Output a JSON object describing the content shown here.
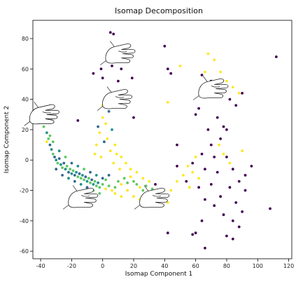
{
  "chart_data": {
    "type": "scatter",
    "title": "Isomap Decomposition",
    "xlabel": "Isomap Component 1",
    "ylabel": "Isomap Component 2",
    "xlim": [
      -45,
      122
    ],
    "ylim": [
      -65,
      92
    ],
    "xticks": [
      -40,
      -20,
      0,
      20,
      40,
      60,
      80,
      100,
      120
    ],
    "yticks": [
      -60,
      -40,
      -20,
      0,
      20,
      40,
      60,
      80
    ],
    "grid": false,
    "legend": "none",
    "colors": {
      "purple": "#440154",
      "blue": "#31688e",
      "teal": "#21908d",
      "green": "#5dc962",
      "yellow": "#fde725"
    },
    "hand_images": [
      {
        "x": 12,
        "y": 70
      },
      {
        "x": 10,
        "y": 40
      },
      {
        "x": -37,
        "y": 30
      },
      {
        "x": 72,
        "y": 47
      },
      {
        "x": -12,
        "y": -25
      },
      {
        "x": 34,
        "y": -25
      }
    ],
    "points": [
      {
        "x": -38,
        "y": 22,
        "c": "green"
      },
      {
        "x": -37,
        "y": 25,
        "c": "green"
      },
      {
        "x": -36,
        "y": 18,
        "c": "teal"
      },
      {
        "x": -35,
        "y": 14,
        "c": "green"
      },
      {
        "x": -34,
        "y": 10,
        "c": "blue"
      },
      {
        "x": -33,
        "y": 7,
        "c": "teal"
      },
      {
        "x": -32,
        "y": 4,
        "c": "green"
      },
      {
        "x": -31,
        "y": 2,
        "c": "blue"
      },
      {
        "x": -30,
        "y": 0,
        "c": "teal"
      },
      {
        "x": -29,
        "y": -2,
        "c": "green"
      },
      {
        "x": -28,
        "y": 1,
        "c": "blue"
      },
      {
        "x": -27,
        "y": -3,
        "c": "teal"
      },
      {
        "x": -26,
        "y": -5,
        "c": "green"
      },
      {
        "x": -25,
        "y": -2,
        "c": "blue"
      },
      {
        "x": -24,
        "y": -6,
        "c": "teal"
      },
      {
        "x": -23,
        "y": -4,
        "c": "green"
      },
      {
        "x": -22,
        "y": -8,
        "c": "blue"
      },
      {
        "x": -21,
        "y": -6,
        "c": "green"
      },
      {
        "x": -20,
        "y": -9,
        "c": "teal"
      },
      {
        "x": -19,
        "y": -7,
        "c": "green"
      },
      {
        "x": -18,
        "y": -10,
        "c": "blue"
      },
      {
        "x": -17,
        "y": -8,
        "c": "teal"
      },
      {
        "x": -16,
        "y": -11,
        "c": "green"
      },
      {
        "x": -15,
        "y": -9,
        "c": "blue"
      },
      {
        "x": -14,
        "y": -12,
        "c": "green"
      },
      {
        "x": -13,
        "y": -10,
        "c": "teal"
      },
      {
        "x": -12,
        "y": -13,
        "c": "green"
      },
      {
        "x": -11,
        "y": -11,
        "c": "blue"
      },
      {
        "x": -10,
        "y": -14,
        "c": "teal"
      },
      {
        "x": -9,
        "y": -12,
        "c": "green"
      },
      {
        "x": -8,
        "y": -15,
        "c": "green"
      },
      {
        "x": -7,
        "y": -13,
        "c": "blue"
      },
      {
        "x": -6,
        "y": -16,
        "c": "teal"
      },
      {
        "x": -5,
        "y": -14,
        "c": "green"
      },
      {
        "x": -4,
        "y": -17,
        "c": "green"
      },
      {
        "x": -3,
        "y": -15,
        "c": "teal"
      },
      {
        "x": -2,
        "y": -18,
        "c": "green"
      },
      {
        "x": 0,
        "y": -16,
        "c": "green"
      },
      {
        "x": 2,
        "y": -19,
        "c": "yellow"
      },
      {
        "x": 4,
        "y": -17,
        "c": "green"
      },
      {
        "x": 6,
        "y": -20,
        "c": "yellow"
      },
      {
        "x": 8,
        "y": -18,
        "c": "green"
      },
      {
        "x": 10,
        "y": -14,
        "c": "green"
      },
      {
        "x": 12,
        "y": -16,
        "c": "yellow"
      },
      {
        "x": 14,
        "y": -12,
        "c": "green"
      },
      {
        "x": 16,
        "y": -15,
        "c": "green"
      },
      {
        "x": 18,
        "y": -11,
        "c": "yellow"
      },
      {
        "x": 20,
        "y": -14,
        "c": "green"
      },
      {
        "x": 22,
        "y": -16,
        "c": "green"
      },
      {
        "x": 24,
        "y": -18,
        "c": "yellow"
      },
      {
        "x": 26,
        "y": -20,
        "c": "green"
      },
      {
        "x": 28,
        "y": -17,
        "c": "green"
      },
      {
        "x": 30,
        "y": -21,
        "c": "yellow"
      },
      {
        "x": 32,
        "y": -19,
        "c": "green"
      },
      {
        "x": 34,
        "y": -22,
        "c": "yellow"
      },
      {
        "x": 36,
        "y": -24,
        "c": "green"
      },
      {
        "x": 38,
        "y": -26,
        "c": "yellow"
      },
      {
        "x": -30,
        "y": -6,
        "c": "blue"
      },
      {
        "x": -26,
        "y": -10,
        "c": "blue"
      },
      {
        "x": -22,
        "y": -12,
        "c": "teal"
      },
      {
        "x": -18,
        "y": -14,
        "c": "blue"
      },
      {
        "x": -14,
        "y": -16,
        "c": "teal"
      },
      {
        "x": -10,
        "y": -18,
        "c": "blue"
      },
      {
        "x": -6,
        "y": -20,
        "c": "green"
      },
      {
        "x": -2,
        "y": -22,
        "c": "green"
      },
      {
        "x": 2,
        "y": -13,
        "c": "green"
      },
      {
        "x": -34,
        "y": 16,
        "c": "green"
      },
      {
        "x": -36,
        "y": 12,
        "c": "yellow"
      },
      {
        "x": -32,
        "y": 12,
        "c": "green"
      },
      {
        "x": -28,
        "y": 6,
        "c": "teal"
      },
      {
        "x": -24,
        "y": 2,
        "c": "green"
      },
      {
        "x": -20,
        "y": -2,
        "c": "blue"
      },
      {
        "x": -16,
        "y": -4,
        "c": "teal"
      },
      {
        "x": -12,
        "y": -6,
        "c": "green"
      },
      {
        "x": -8,
        "y": -8,
        "c": "blue"
      },
      {
        "x": -4,
        "y": -10,
        "c": "teal"
      },
      {
        "x": 0,
        "y": -12,
        "c": "blue"
      },
      {
        "x": 4,
        "y": -10,
        "c": "blue"
      },
      {
        "x": -39,
        "y": 30,
        "c": "green"
      },
      {
        "x": -38,
        "y": 34,
        "c": "green"
      },
      {
        "x": -36,
        "y": 28,
        "c": "blue"
      },
      {
        "x": -33,
        "y": 26,
        "c": "green"
      },
      {
        "x": -40,
        "y": 26,
        "c": "green"
      },
      {
        "x": 0,
        "y": 28,
        "c": "yellow"
      },
      {
        "x": 2,
        "y": 24,
        "c": "yellow"
      },
      {
        "x": -2,
        "y": 18,
        "c": "yellow"
      },
      {
        "x": 3,
        "y": 14,
        "c": "yellow"
      },
      {
        "x": -4,
        "y": 10,
        "c": "yellow"
      },
      {
        "x": 5,
        "y": 6,
        "c": "yellow"
      },
      {
        "x": -1,
        "y": 2,
        "c": "yellow"
      },
      {
        "x": 7,
        "y": -2,
        "c": "yellow"
      },
      {
        "x": 9,
        "y": 4,
        "c": "yellow"
      },
      {
        "x": 11,
        "y": -6,
        "c": "yellow"
      },
      {
        "x": 4,
        "y": 32,
        "c": "blue"
      },
      {
        "x": 0,
        "y": 36,
        "c": "yellow"
      },
      {
        "x": -3,
        "y": 22,
        "c": "blue"
      },
      {
        "x": 6,
        "y": 20,
        "c": "teal"
      },
      {
        "x": 1,
        "y": 12,
        "c": "blue"
      },
      {
        "x": 8,
        "y": 10,
        "c": "yellow"
      },
      {
        "x": -5,
        "y": 4,
        "c": "yellow"
      },
      {
        "x": 12,
        "y": 2,
        "c": "yellow"
      },
      {
        "x": 15,
        "y": -2,
        "c": "yellow"
      },
      {
        "x": 18,
        "y": -6,
        "c": "yellow"
      },
      {
        "x": 22,
        "y": -8,
        "c": "yellow"
      },
      {
        "x": 26,
        "y": -12,
        "c": "yellow"
      },
      {
        "x": 30,
        "y": -14,
        "c": "yellow"
      },
      {
        "x": 8,
        "y": -22,
        "c": "yellow"
      },
      {
        "x": 12,
        "y": -24,
        "c": "yellow"
      },
      {
        "x": 16,
        "y": -20,
        "c": "yellow"
      },
      {
        "x": 20,
        "y": -24,
        "c": "yellow"
      },
      {
        "x": 24,
        "y": -26,
        "c": "yellow"
      },
      {
        "x": 28,
        "y": -28,
        "c": "yellow"
      },
      {
        "x": 42,
        "y": -28,
        "c": "yellow"
      },
      {
        "x": 44,
        "y": -20,
        "c": "yellow"
      },
      {
        "x": 48,
        "y": -14,
        "c": "yellow"
      },
      {
        "x": 52,
        "y": -10,
        "c": "yellow"
      },
      {
        "x": 55,
        "y": -4,
        "c": "yellow"
      },
      {
        "x": 58,
        "y": -8,
        "c": "yellow"
      },
      {
        "x": 60,
        "y": 2,
        "c": "yellow"
      },
      {
        "x": 62,
        "y": -12,
        "c": "yellow"
      },
      {
        "x": 56,
        "y": -18,
        "c": "yellow"
      },
      {
        "x": 66,
        "y": 58,
        "c": "yellow"
      },
      {
        "x": 68,
        "y": 70,
        "c": "yellow"
      },
      {
        "x": 72,
        "y": 66,
        "c": "yellow"
      },
      {
        "x": 76,
        "y": 58,
        "c": "yellow"
      },
      {
        "x": 80,
        "y": 52,
        "c": "yellow"
      },
      {
        "x": 84,
        "y": 48,
        "c": "yellow"
      },
      {
        "x": 88,
        "y": 44,
        "c": "yellow"
      },
      {
        "x": 63,
        "y": 46,
        "c": "yellow"
      },
      {
        "x": 78,
        "y": 4,
        "c": "yellow"
      },
      {
        "x": 82,
        "y": -2,
        "c": "yellow"
      },
      {
        "x": 75,
        "y": 10,
        "c": "yellow"
      },
      {
        "x": 50,
        "y": 62,
        "c": "yellow"
      },
      {
        "x": 42,
        "y": 38,
        "c": "yellow"
      },
      {
        "x": 90,
        "y": 6,
        "c": "yellow"
      },
      {
        "x": 5,
        "y": 84,
        "c": "purple"
      },
      {
        "x": 7,
        "y": 83,
        "c": "purple"
      },
      {
        "x": 9,
        "y": 72,
        "c": "purple"
      },
      {
        "x": 3,
        "y": 68,
        "c": "purple"
      },
      {
        "x": -1,
        "y": 60,
        "c": "purple"
      },
      {
        "x": 6,
        "y": 62,
        "c": "purple"
      },
      {
        "x": 12,
        "y": 60,
        "c": "purple"
      },
      {
        "x": -6,
        "y": 57,
        "c": "purple"
      },
      {
        "x": 0,
        "y": 54,
        "c": "purple"
      },
      {
        "x": 10,
        "y": 52,
        "c": "purple"
      },
      {
        "x": 19,
        "y": 54,
        "c": "purple"
      },
      {
        "x": 20,
        "y": 28,
        "c": "purple"
      },
      {
        "x": -16,
        "y": 26,
        "c": "purple"
      },
      {
        "x": 40,
        "y": 75,
        "c": "purple"
      },
      {
        "x": 42,
        "y": 60,
        "c": "purple"
      },
      {
        "x": 44,
        "y": 57,
        "c": "purple"
      },
      {
        "x": 64,
        "y": 56,
        "c": "purple"
      },
      {
        "x": 70,
        "y": 52,
        "c": "purple"
      },
      {
        "x": 62,
        "y": 34,
        "c": "purple"
      },
      {
        "x": 74,
        "y": 28,
        "c": "purple"
      },
      {
        "x": 78,
        "y": 22,
        "c": "purple"
      },
      {
        "x": 82,
        "y": 40,
        "c": "purple"
      },
      {
        "x": 86,
        "y": 36,
        "c": "purple"
      },
      {
        "x": 68,
        "y": 20,
        "c": "purple"
      },
      {
        "x": 48,
        "y": 10,
        "c": "purple"
      },
      {
        "x": 70,
        "y": 10,
        "c": "purple"
      },
      {
        "x": 64,
        "y": 4,
        "c": "purple"
      },
      {
        "x": 72,
        "y": 2,
        "c": "purple"
      },
      {
        "x": 58,
        "y": -2,
        "c": "purple"
      },
      {
        "x": 66,
        "y": -6,
        "c": "purple"
      },
      {
        "x": 74,
        "y": -8,
        "c": "purple"
      },
      {
        "x": 80,
        "y": 2,
        "c": "purple"
      },
      {
        "x": 84,
        "y": -6,
        "c": "purple"
      },
      {
        "x": 88,
        "y": -14,
        "c": "purple"
      },
      {
        "x": 92,
        "y": -20,
        "c": "purple"
      },
      {
        "x": 62,
        "y": -18,
        "c": "purple"
      },
      {
        "x": 70,
        "y": -16,
        "c": "purple"
      },
      {
        "x": 76,
        "y": -24,
        "c": "purple"
      },
      {
        "x": 82,
        "y": -18,
        "c": "purple"
      },
      {
        "x": 86,
        "y": -28,
        "c": "purple"
      },
      {
        "x": 90,
        "y": -34,
        "c": "purple"
      },
      {
        "x": 84,
        "y": -40,
        "c": "purple"
      },
      {
        "x": 78,
        "y": -36,
        "c": "purple"
      },
      {
        "x": 72,
        "y": -30,
        "c": "purple"
      },
      {
        "x": 66,
        "y": -26,
        "c": "purple"
      },
      {
        "x": 64,
        "y": -40,
        "c": "purple"
      },
      {
        "x": 60,
        "y": -48,
        "c": "purple"
      },
      {
        "x": 58,
        "y": -49,
        "c": "purple"
      },
      {
        "x": 66,
        "y": -58,
        "c": "purple"
      },
      {
        "x": 80,
        "y": -50,
        "c": "purple"
      },
      {
        "x": 84,
        "y": -52,
        "c": "purple"
      },
      {
        "x": 88,
        "y": -44,
        "c": "purple"
      },
      {
        "x": 108,
        "y": -32,
        "c": "purple"
      },
      {
        "x": 112,
        "y": 68,
        "c": "purple"
      },
      {
        "x": 42,
        "y": -48,
        "c": "purple"
      },
      {
        "x": 48,
        "y": -4,
        "c": "purple"
      },
      {
        "x": 54,
        "y": -14,
        "c": "purple"
      },
      {
        "x": 92,
        "y": -10,
        "c": "purple"
      },
      {
        "x": 96,
        "y": -4,
        "c": "purple"
      },
      {
        "x": 80,
        "y": 20,
        "c": "purple"
      },
      {
        "x": 76,
        "y": 14,
        "c": "purple"
      },
      {
        "x": 90,
        "y": 44,
        "c": "purple"
      },
      {
        "x": 34,
        "y": -16,
        "c": "purple"
      },
      {
        "x": 30,
        "y": -24,
        "c": "purple"
      },
      {
        "x": 60,
        "y": 30,
        "c": "purple"
      }
    ]
  }
}
